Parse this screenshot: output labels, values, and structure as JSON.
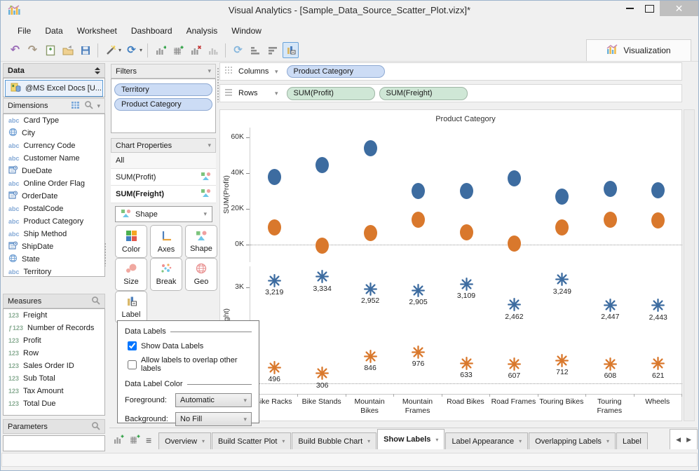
{
  "window": {
    "title": "Visual Analytics - [Sample_Data_Source_Scatter_Plot.vizx]*",
    "close_glyph": "✕"
  },
  "icons": {
    "caret_down": "▾",
    "arrow_left": "◀",
    "arrow_right": "▶",
    "undo": "↶",
    "redo": "↷",
    "refresh": "⟳",
    "rotate": "⟳",
    "list": "≡"
  },
  "menu": {
    "items": [
      "File",
      "Data",
      "Worksheet",
      "Dashboard",
      "Analysis",
      "Window"
    ]
  },
  "toolbar": {
    "visualization_tab": "Visualization",
    "button_names": [
      "undo",
      "redo",
      "new-file",
      "open",
      "save",
      "connect",
      "refresh",
      "add-chart",
      "add-crosstab",
      "remove-chart",
      "chart",
      "pivot",
      "sort-ascending",
      "sort-descending",
      "show-labels"
    ]
  },
  "data_panel": {
    "title": "Data",
    "source": "@MS Excel Docs [U...",
    "dimensions": {
      "title": "Dimensions",
      "items": [
        {
          "icon": "abc",
          "label": "Card Type"
        },
        {
          "icon": "globe",
          "label": "City"
        },
        {
          "icon": "abc",
          "label": "Currency Code"
        },
        {
          "icon": "abc",
          "label": "Customer Name"
        },
        {
          "icon": "date",
          "label": "DueDate"
        },
        {
          "icon": "abc",
          "label": "Online Order Flag"
        },
        {
          "icon": "date",
          "label": "OrderDate"
        },
        {
          "icon": "abc",
          "label": "PostalCode"
        },
        {
          "icon": "abc",
          "label": "Product Category"
        },
        {
          "icon": "abc",
          "label": "Ship Method"
        },
        {
          "icon": "date",
          "label": "ShipDate"
        },
        {
          "icon": "globe",
          "label": "State"
        },
        {
          "icon": "abc",
          "label": "Territory"
        }
      ]
    },
    "measures": {
      "title": "Measures",
      "items": [
        {
          "icon": "123",
          "label": "Freight"
        },
        {
          "icon": "fx123",
          "label": "Number of Records"
        },
        {
          "icon": "123",
          "label": "Profit"
        },
        {
          "icon": "123",
          "label": "Row"
        },
        {
          "icon": "123",
          "label": "Sales Order ID"
        },
        {
          "icon": "123",
          "label": "Sub Total"
        },
        {
          "icon": "123",
          "label": "Tax Amount"
        },
        {
          "icon": "123",
          "label": "Total Due"
        }
      ]
    },
    "parameters": {
      "title": "Parameters"
    }
  },
  "filters": {
    "title": "Filters",
    "pills": [
      "Territory",
      "Product Category"
    ]
  },
  "chart_properties": {
    "title": "Chart Properties",
    "rows": [
      "All",
      "SUM(Profit)",
      "SUM(Freight)"
    ],
    "bold_row": "SUM(Freight)",
    "shape_dropdown_value": "Shape",
    "buttons": [
      "Color",
      "Axes",
      "Shape",
      "Size",
      "Break",
      "Geo",
      "Label"
    ]
  },
  "label_popup": {
    "group1_title": "Data Labels",
    "checkbox_show": {
      "label": "Show Data Labels",
      "checked": true
    },
    "checkbox_overlap": {
      "label": "Allow labels to overlap other labels",
      "checked": false
    },
    "group2_title": "Data Label Color",
    "foreground_label": "Foreground:",
    "foreground_value": "Automatic",
    "background_label": "Background:",
    "background_value": "No Fill"
  },
  "shelves": {
    "columns_label": "Columns",
    "columns_pills": [
      "Product Category"
    ],
    "rows_label": "Rows",
    "rows_pills": [
      "SUM(Profit)",
      "SUM(Freight)"
    ]
  },
  "tabs": {
    "items": [
      "Overview",
      "Build Scatter Plot",
      "Build Bubble Chart",
      "Show Labels",
      "Label Appearance",
      "Overlapping Labels",
      "Label"
    ],
    "active": "Show Labels"
  },
  "colors": {
    "series_blue": "#3d6ca0",
    "series_orange": "#d9782c",
    "pill_blue_bg": "#ccdcf5",
    "pill_green_bg": "#cfe7d6",
    "active_button_border": "#67a1d8"
  },
  "chart_data": {
    "type": "scatter",
    "title": "Product Category",
    "categories": [
      "Bike Racks",
      "Bike Stands",
      "Mountain Bikes",
      "Mountain Frames",
      "Road Bikes",
      "Road Frames",
      "Touring Bikes",
      "Touring Frames",
      "Wheels"
    ],
    "panels": [
      {
        "ylabel": "SUM(Profit)",
        "ylim": [
          -9800,
          65500
        ],
        "yticks": [
          {
            "v": 60000,
            "label": "60K"
          },
          {
            "v": 40000,
            "label": "40K"
          },
          {
            "v": 20000,
            "label": "20K"
          },
          {
            "v": 0,
            "label": "0K"
          }
        ],
        "zero_line": true,
        "series": [
          {
            "name": "profit-blue",
            "color": "#3d6ca0",
            "marker": "ellipse",
            "values": [
              38000,
              44500,
              54000,
              30000,
              30000,
              37000,
              27000,
              31000,
              30500
            ]
          },
          {
            "name": "profit-orange",
            "color": "#d9782c",
            "marker": "ellipse",
            "values": [
              9500,
              -500,
              6500,
              14000,
              7000,
              500,
              9500,
              14000,
              13500
            ]
          }
        ]
      },
      {
        "ylabel": "SUM(Freight)",
        "ylim": [
          -330,
          3660
        ],
        "yticks": [
          {
            "v": 3000,
            "label": "3K"
          },
          {
            "v": 0,
            "label": "0K"
          }
        ],
        "zero_line": true,
        "series": [
          {
            "name": "freight-blue",
            "color": "#3d6ca0",
            "marker": "asterisk",
            "values": [
              3219,
              3334,
              2952,
              2905,
              3109,
              2462,
              3249,
              2447,
              2443
            ],
            "labels": [
              "3,219",
              "3,334",
              "2,952",
              "2,905",
              "3,109",
              "2,462",
              "3,249",
              "2,447",
              "2,443"
            ]
          },
          {
            "name": "freight-orange",
            "color": "#d9782c",
            "marker": "asterisk",
            "values": [
              496,
              306,
              846,
              976,
              633,
              607,
              712,
              608,
              621
            ],
            "labels": [
              "496",
              "306",
              "846",
              "976",
              "633",
              "607",
              "712",
              "608",
              "621"
            ]
          }
        ]
      }
    ]
  }
}
